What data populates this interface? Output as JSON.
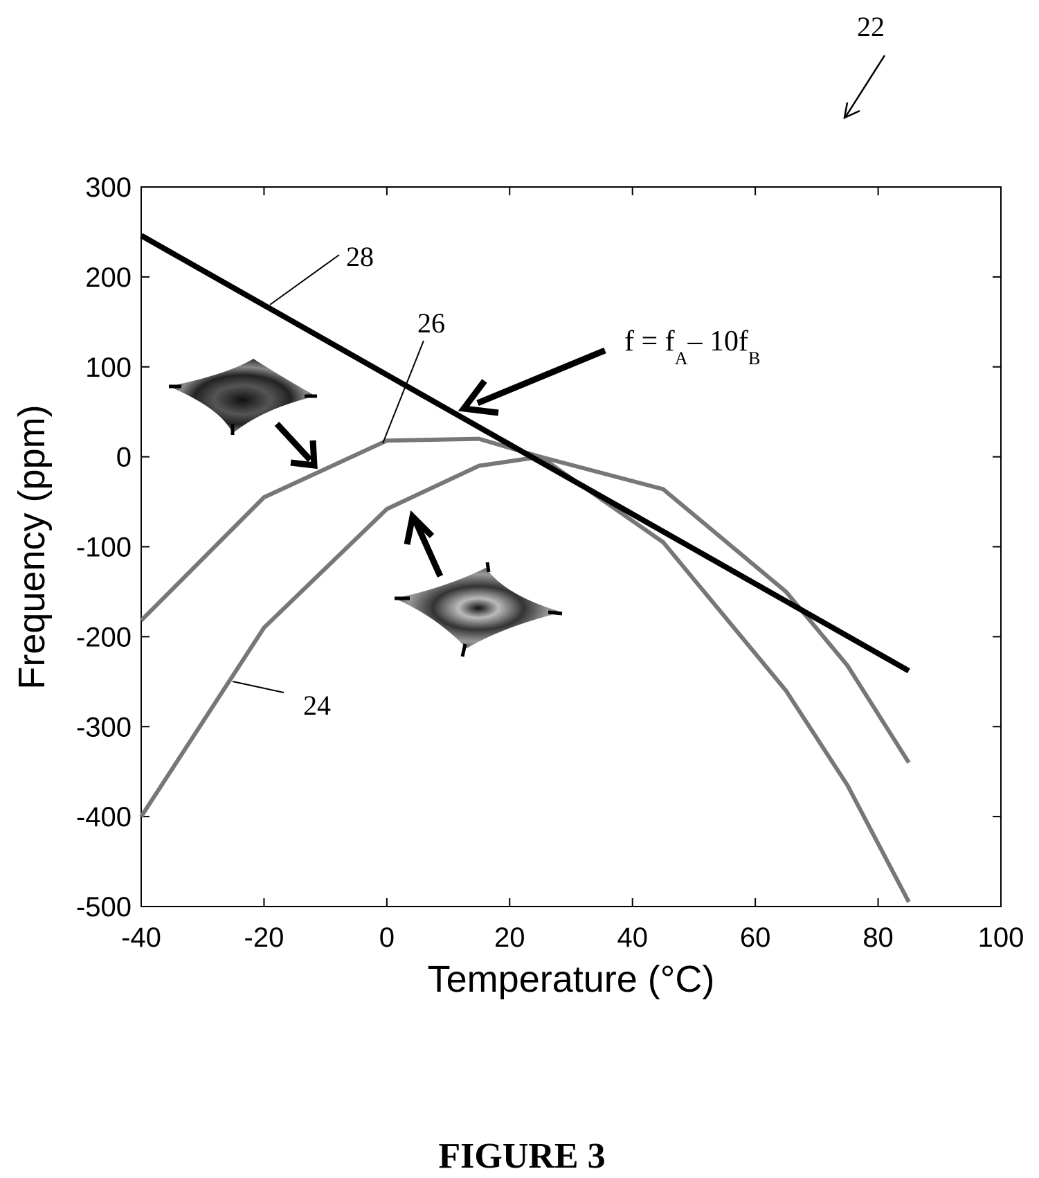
{
  "figure": {
    "caption": "FIGURE 3",
    "ref_main": "22"
  },
  "chart_data": {
    "type": "line",
    "xlabel": "Temperature (°C)",
    "ylabel": "Frequency (ppm)",
    "xlim": [
      -40,
      100
    ],
    "ylim": [
      -500,
      300
    ],
    "xticks": [
      -40,
      -20,
      0,
      20,
      40,
      60,
      80,
      100
    ],
    "yticks": [
      -500,
      -400,
      -300,
      -200,
      -100,
      0,
      100,
      200,
      300
    ],
    "grid": false,
    "legend": "none",
    "series": [
      {
        "ref": "24",
        "color": "#777777",
        "points": [
          [
            -40,
            -400
          ],
          [
            -20,
            -190
          ],
          [
            0,
            -58
          ],
          [
            15,
            -10
          ],
          [
            25,
            0
          ],
          [
            45,
            -95
          ],
          [
            65,
            -260
          ],
          [
            75,
            -365
          ],
          [
            85,
            -495
          ]
        ]
      },
      {
        "ref": "26",
        "color": "#777777",
        "points": [
          [
            -40,
            -182
          ],
          [
            -20,
            -45
          ],
          [
            0,
            18
          ],
          [
            15,
            20
          ],
          [
            25,
            0
          ],
          [
            45,
            -36
          ],
          [
            65,
            -150
          ],
          [
            75,
            -232
          ],
          [
            85,
            -340
          ]
        ]
      },
      {
        "ref": "28",
        "color": "#000000",
        "points": [
          [
            -40,
            246
          ],
          [
            85,
            -238
          ]
        ]
      }
    ],
    "annotations": {
      "formula": {
        "f": "f",
        "eq": " = f",
        "sub_a": "A",
        "dash": "– 10f",
        "sub_b": "B"
      }
    }
  }
}
